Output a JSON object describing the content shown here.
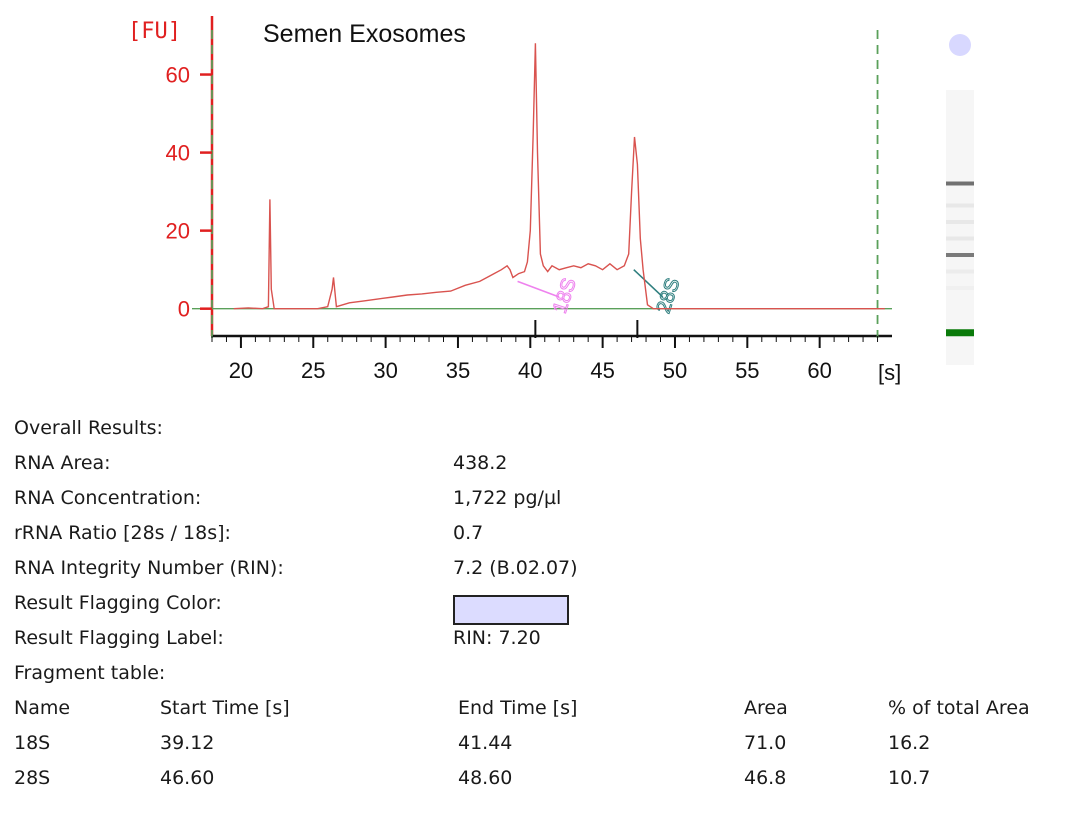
{
  "chart_data": {
    "type": "line",
    "title": "Semen Exosomes",
    "ylabel": "[FU]",
    "xlabel": "[s]",
    "xlim": [
      18,
      65
    ],
    "ylim": [
      -7,
      75
    ],
    "x_ticks": [
      20,
      25,
      30,
      35,
      40,
      45,
      50,
      55,
      60
    ],
    "x_tick_labels": [
      "20",
      "25",
      "30",
      "35",
      "40",
      "45",
      "50",
      "55",
      "60"
    ],
    "y_ticks": [
      0,
      20,
      40,
      60
    ],
    "y_tick_labels": [
      "0",
      "20",
      "40",
      "60"
    ],
    "grid": false,
    "markers_dashed_x": [
      18,
      64
    ],
    "baseline_y": 0,
    "series": [
      {
        "color": "#d9534f",
        "x": [
          19.5,
          20.5,
          21.5,
          21.9,
          22.0,
          22.1,
          22.3,
          25.3,
          26.0,
          26.3,
          26.4,
          26.6,
          27.5,
          28.5,
          29.5,
          30.5,
          31.5,
          32.5,
          33.5,
          34.5,
          35.5,
          36.5,
          37.0,
          37.5,
          38.0,
          38.4,
          38.6,
          38.8,
          39.2,
          39.6,
          39.8,
          40.0,
          40.2,
          40.35,
          40.5,
          40.7,
          40.9,
          41.2,
          41.5,
          42.0,
          42.5,
          43.0,
          43.5,
          44.0,
          44.5,
          45.0,
          45.5,
          46.0,
          46.5,
          46.8,
          47.0,
          47.2,
          47.4,
          47.6,
          47.8,
          48.1,
          48.5,
          49.0,
          50.0,
          64.5
        ],
        "y": [
          0,
          0.2,
          0,
          0.5,
          28,
          5,
          0,
          0,
          0.5,
          5,
          8,
          0.5,
          1.5,
          2,
          2.5,
          3,
          3.5,
          3.8,
          4.2,
          4.5,
          6,
          7,
          8,
          9,
          10,
          11,
          10,
          8,
          9,
          9.5,
          12,
          20,
          45,
          68,
          40,
          14,
          11,
          9.5,
          11,
          10,
          10.5,
          11,
          10.5,
          11.5,
          11,
          10,
          11.5,
          10,
          11,
          14,
          30,
          44,
          37,
          18,
          10,
          1,
          0,
          0,
          0,
          0
        ]
      }
    ],
    "fragments": [
      {
        "label": "18S",
        "start": 39.12,
        "end": 41.44,
        "peak": 40.35,
        "color": "#ee82ee"
      },
      {
        "label": "28S",
        "start": 46.6,
        "end": 48.6,
        "peak": 47.4,
        "color": "#2f7f7f"
      }
    ],
    "gel_bands": [
      {
        "position": 0.34,
        "intensity": 0.75
      },
      {
        "position": 0.6,
        "intensity": 0.7
      },
      {
        "position": 0.42,
        "intensity": 0.12
      },
      {
        "position": 0.48,
        "intensity": 0.12
      },
      {
        "position": 0.54,
        "intensity": 0.12
      },
      {
        "position": 0.66,
        "intensity": 0.1
      },
      {
        "position": 0.72,
        "intensity": 0.08
      }
    ],
    "gel_top_color": "#d8d8ff",
    "gel_marker_color": "#0a7a0a"
  },
  "results": {
    "overall_label": "Overall Results:",
    "rows": [
      {
        "key": "RNA Area:",
        "value": "438.2"
      },
      {
        "key": "RNA Concentration:",
        "value": "1,722 pg/µl"
      },
      {
        "key": "rRNA Ratio [28s / 18s]:",
        "value": "0.7"
      },
      {
        "key": "RNA Integrity Number (RIN):",
        "value": "7.2 (B.02.07)"
      },
      {
        "key": "Result Flagging Color:",
        "value": ""
      },
      {
        "key": "Result Flagging Label:",
        "value": "RIN: 7.20"
      }
    ],
    "flag_color": "#dcdcff",
    "fragment_table_label": "Fragment table:",
    "fragment_headers": [
      "Name",
      "Start Time [s]",
      "End Time [s]",
      "Area",
      "% of total Area"
    ],
    "fragment_rows": [
      [
        "18S",
        "39.12",
        "41.44",
        "71.0",
        "16.2"
      ],
      [
        "28S",
        "46.60",
        "48.60",
        "46.8",
        "10.7"
      ]
    ]
  }
}
